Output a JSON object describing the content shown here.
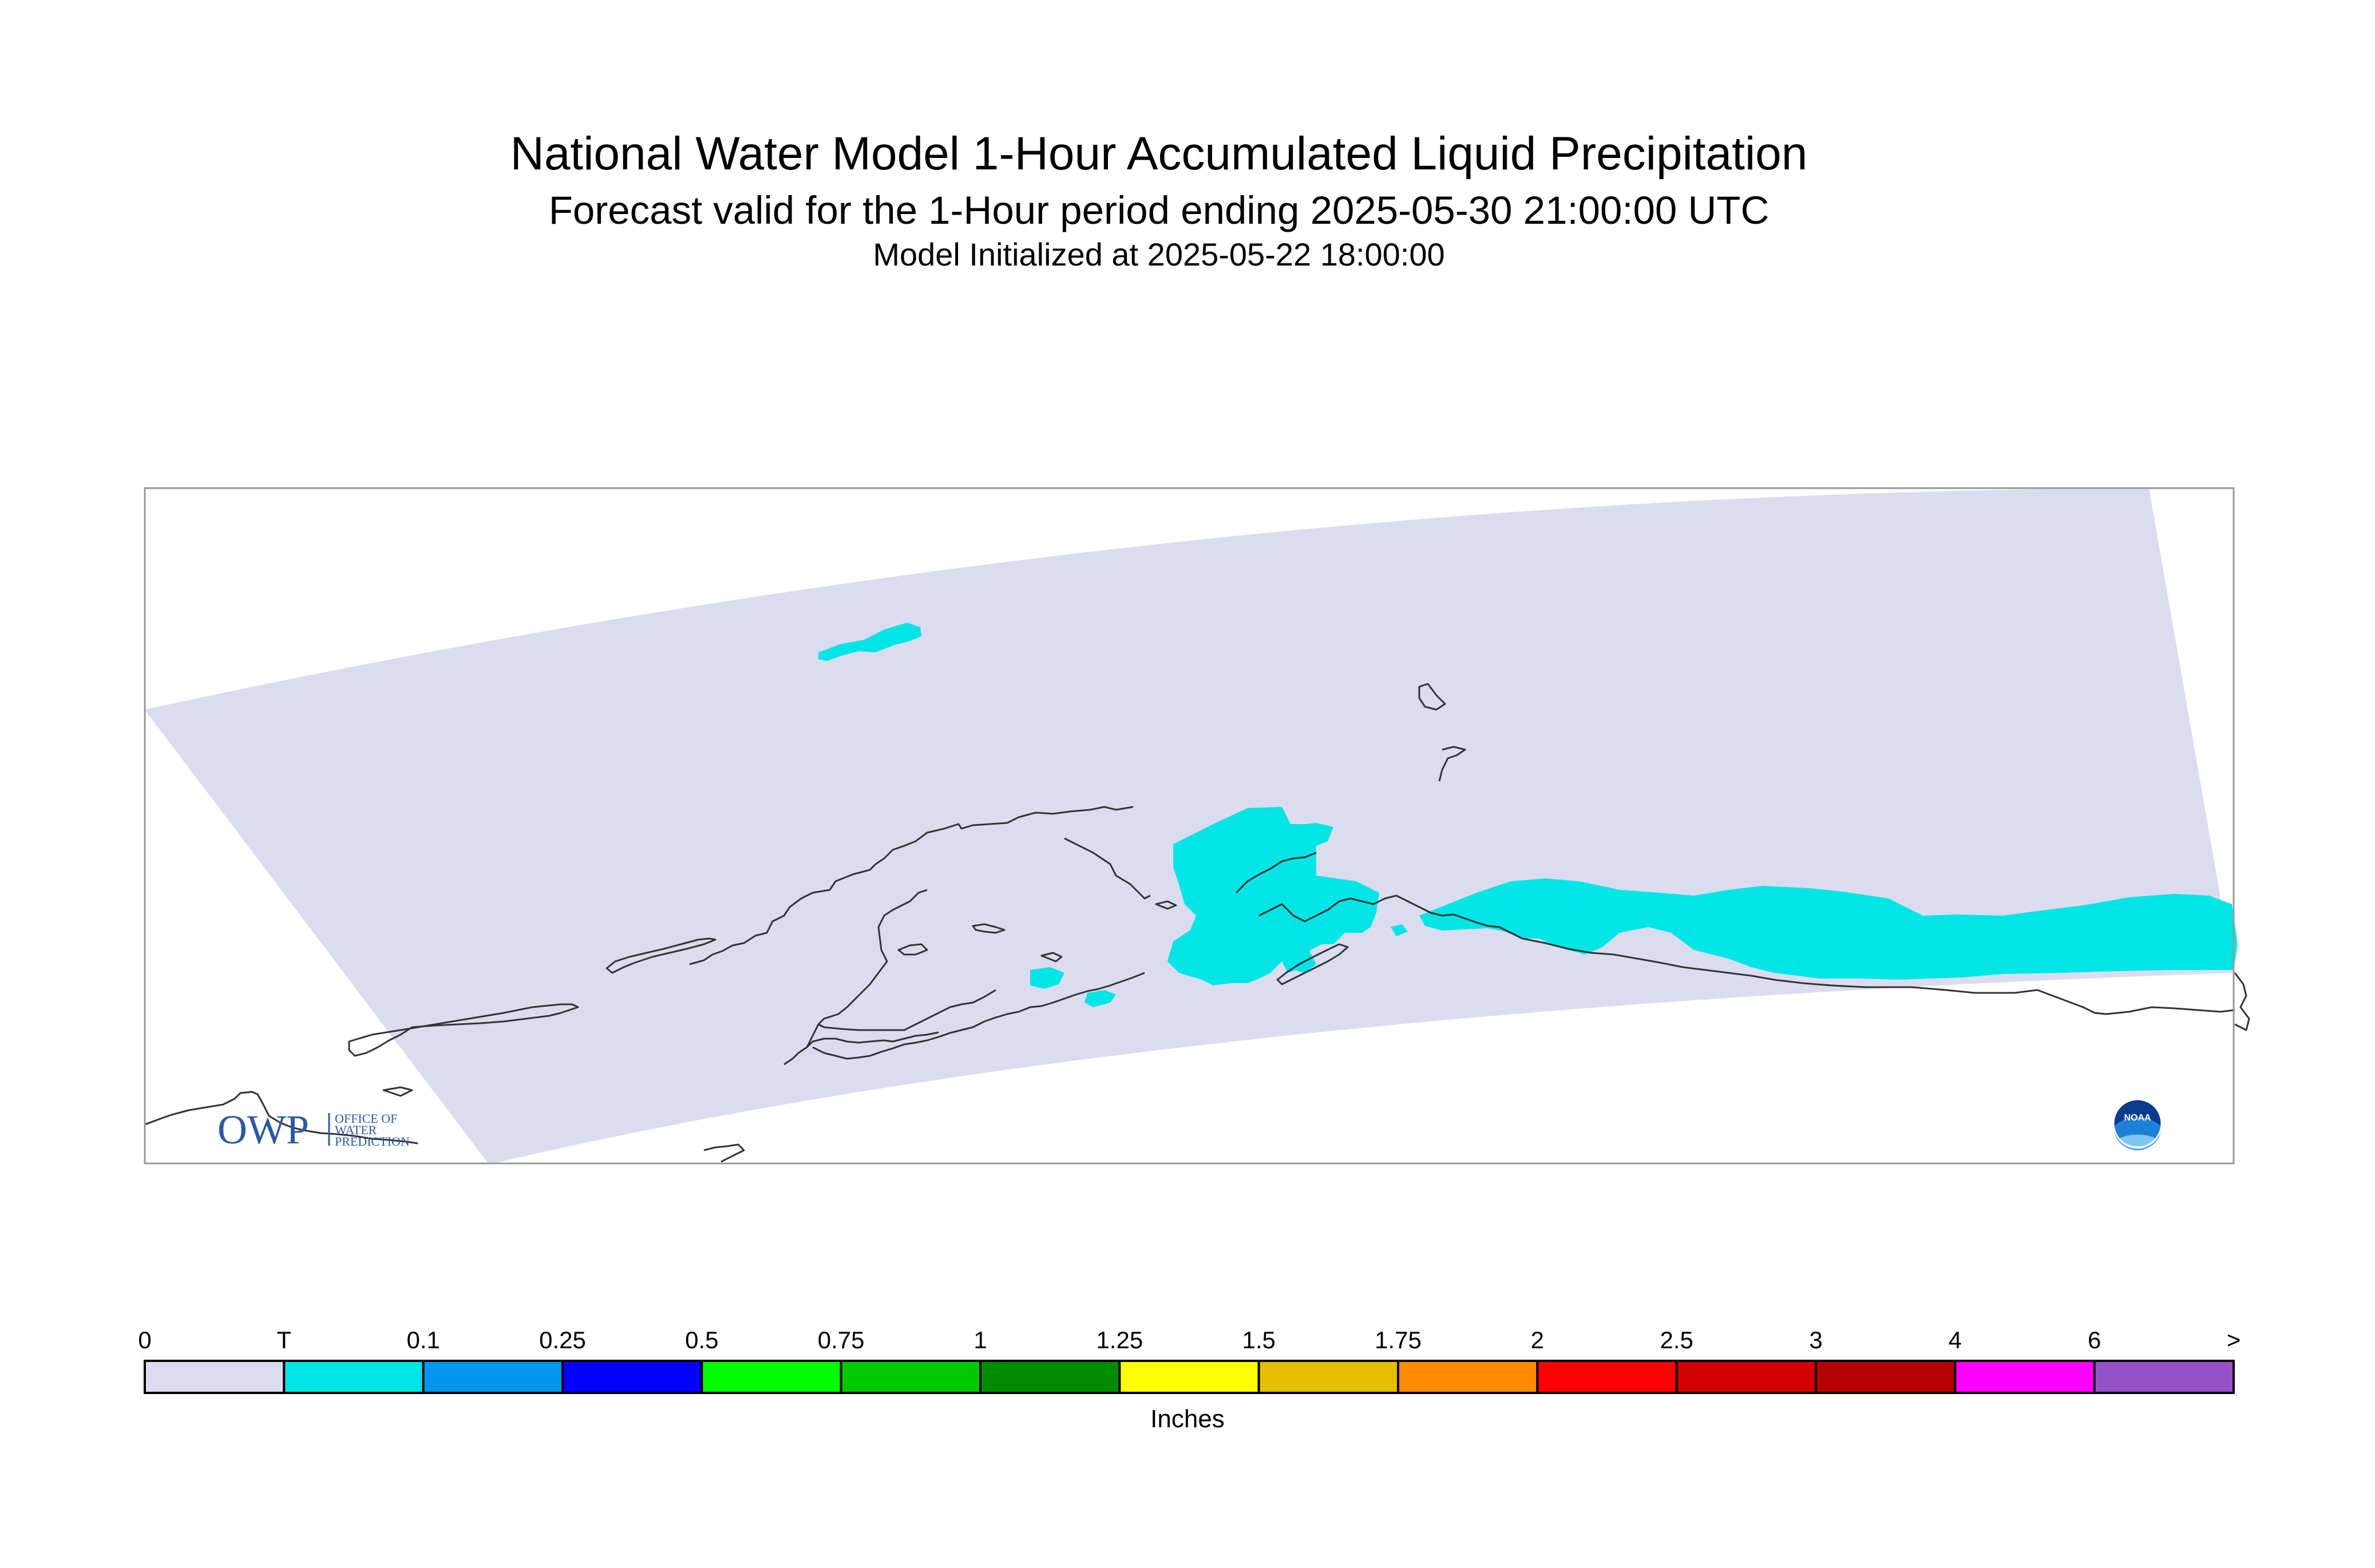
{
  "header": {
    "title": "National Water Model 1-Hour Accumulated Liquid Precipitation",
    "subtitle": "Forecast valid for the 1-Hour period ending 2025-05-30 21:00:00 UTC",
    "init": "Model Initialized at 2025-05-22 18:00:00"
  },
  "logos": {
    "owp": {
      "text": "OWP",
      "line1": "OFFICE OF",
      "line2": "WATER",
      "line3": "PREDICTION"
    },
    "noaa": {
      "text": "NOAA"
    }
  },
  "colors": {
    "domain": "#dcdcf0",
    "precip": "#00e6e6",
    "coast": "#333333",
    "frame": "#999999"
  },
  "legend": {
    "units": "Inches",
    "ticks": [
      "0",
      "T",
      "0.1",
      "0.25",
      "0.5",
      "0.75",
      "1",
      "1.25",
      "1.5",
      "1.75",
      "2",
      "2.5",
      "3",
      "4",
      "6",
      ">"
    ],
    "colors": [
      "#dcdcf0",
      "#00e6e6",
      "#0096f0",
      "#0000ff",
      "#00ff00",
      "#00c800",
      "#008c00",
      "#ffff00",
      "#e6be00",
      "#ff8c00",
      "#ff0000",
      "#d20000",
      "#b40000",
      "#ff00ff",
      "#9650c8"
    ]
  }
}
